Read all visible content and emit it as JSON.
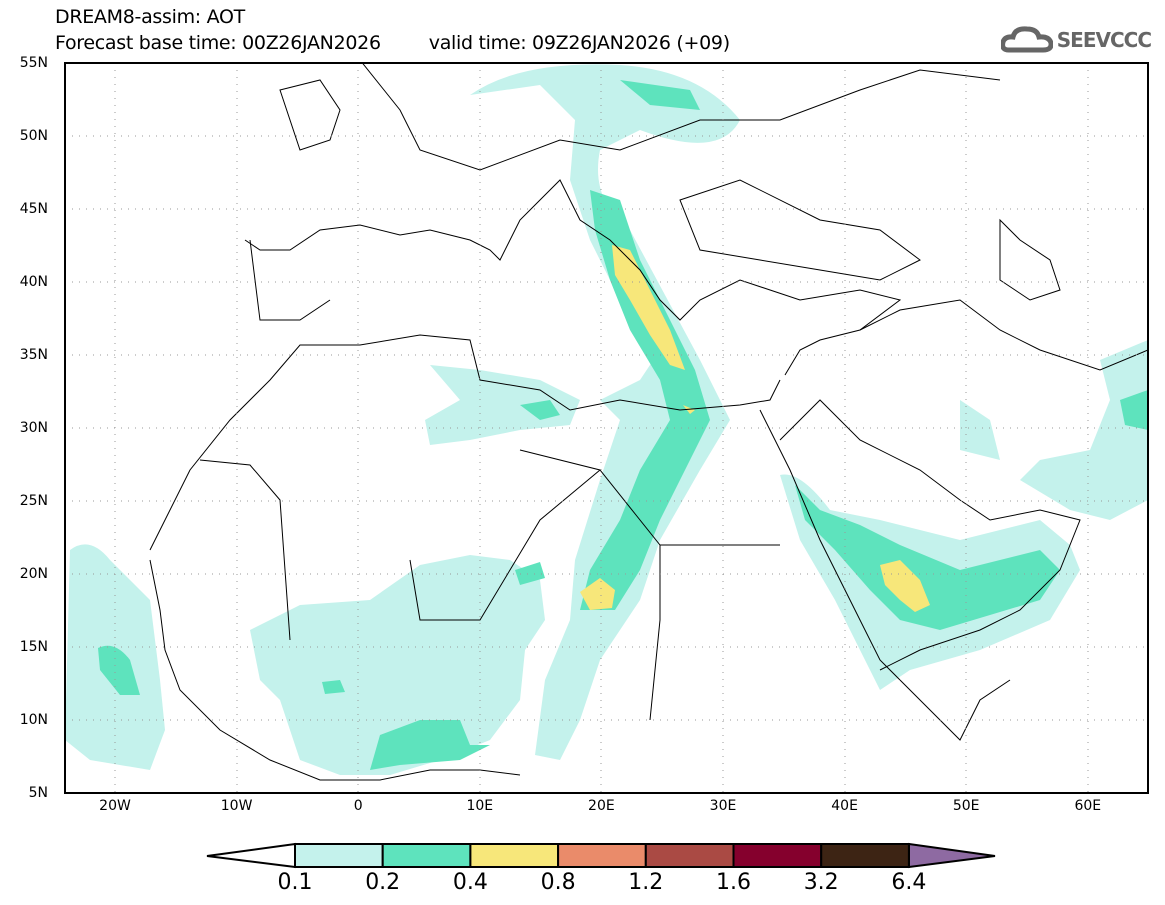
{
  "title": {
    "line1": "DREAM8-assim: AOT",
    "base_time": "Forecast base time: 00Z26JAN2026",
    "valid_time": "valid time: 09Z26JAN2026 (+09)"
  },
  "logo": {
    "text": "SEEVCCC",
    "icon": "cloud-icon"
  },
  "map": {
    "lat_labels": [
      "55N",
      "50N",
      "45N",
      "40N",
      "35N",
      "30N",
      "25N",
      "20N",
      "15N",
      "10N",
      "5N"
    ],
    "lon_labels": [
      "20W",
      "10W",
      "0",
      "10E",
      "20E",
      "30E",
      "40E",
      "50E",
      "60E"
    ]
  },
  "colorbar": {
    "levels": [
      "0.1",
      "0.2",
      "0.4",
      "0.8",
      "1.2",
      "1.6",
      "3.2",
      "6.4"
    ],
    "colors": [
      "#c4f2ec",
      "#5ee3bd",
      "#f7e77a",
      "#ea8b6a",
      "#aa4a44",
      "#85002d",
      "#3d2414",
      "#8e6aa2"
    ]
  }
}
